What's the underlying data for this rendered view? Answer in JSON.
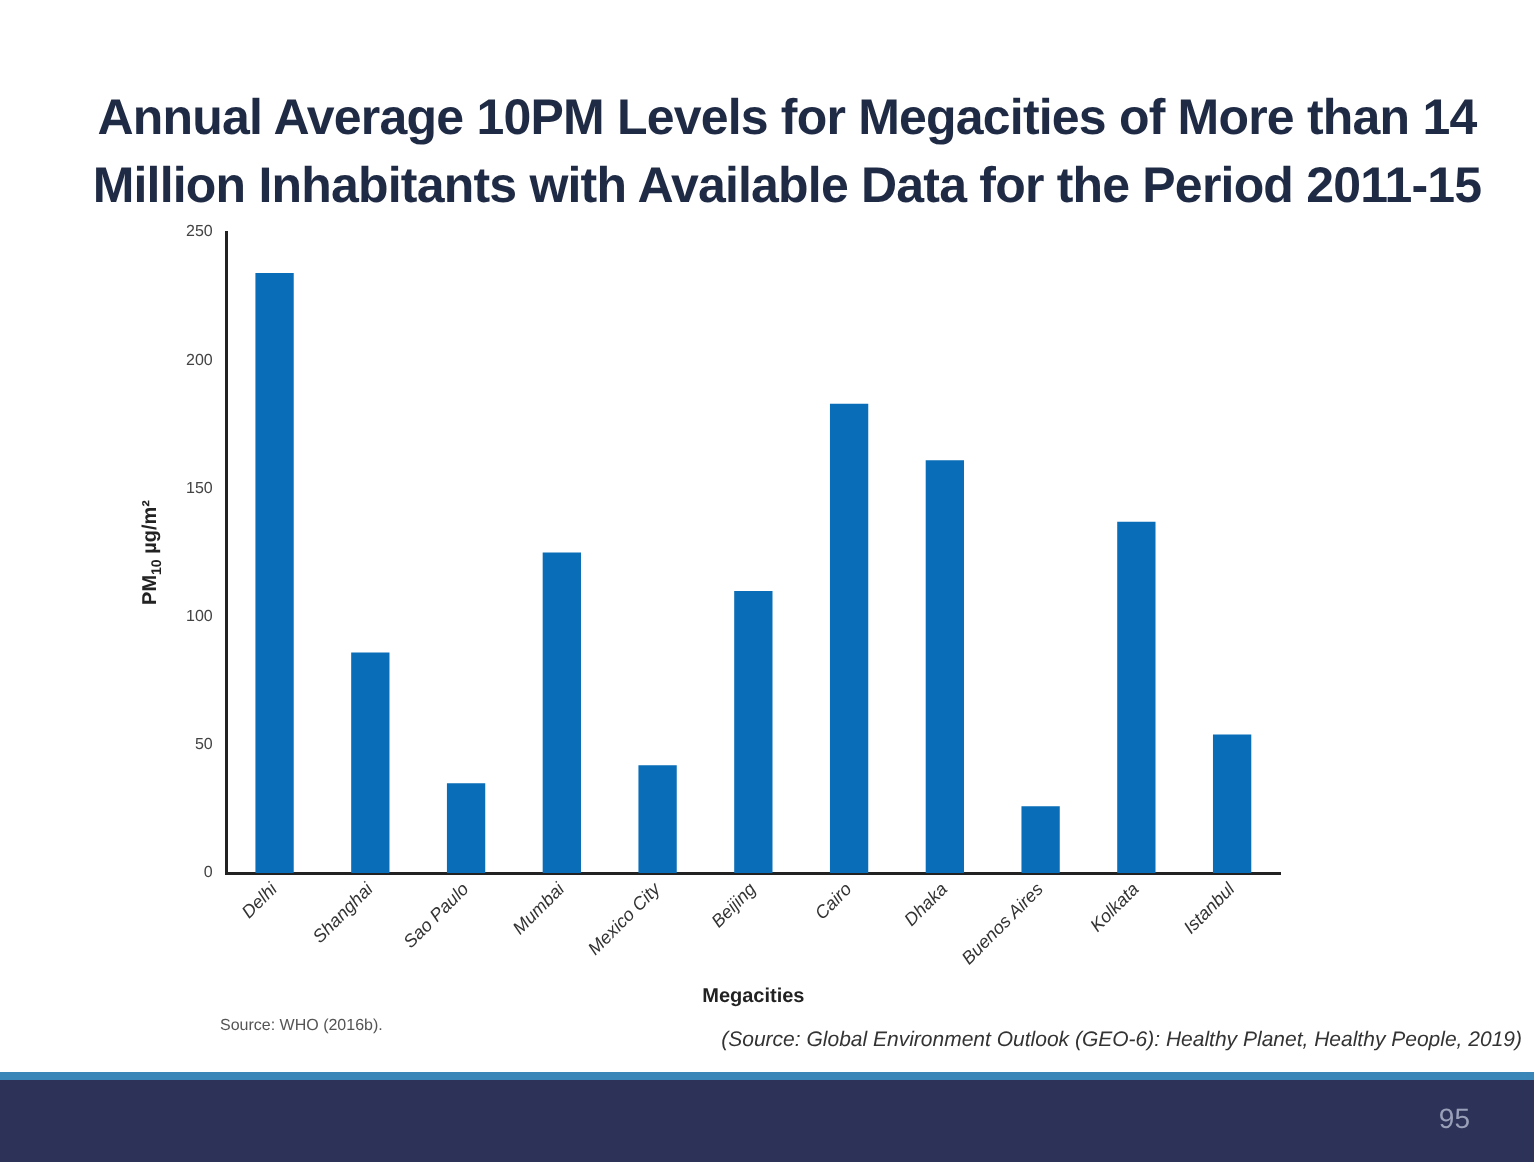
{
  "chart_data": {
    "type": "bar",
    "title": "Annual Average 10PM Levels for Megacities of More than 14 Million Inhabitants with Available Data for the Period 2011-15",
    "categories": [
      "Delhi",
      "Shanghai",
      "Sao Paulo",
      "Mumbai",
      "Mexico City",
      "Beijing",
      "Cairo",
      "Dhaka",
      "Buenos Aires",
      "Kolkata",
      "Istanbul"
    ],
    "values": [
      234,
      86,
      35,
      125,
      42,
      110,
      183,
      161,
      26,
      137,
      54
    ],
    "color": "#0a6db7",
    "xlabel": "Megacities",
    "ylabel": "PM$_{10}$ µg/m²",
    "ylim": [
      0,
      250
    ],
    "yticks": [
      0,
      50,
      100,
      150,
      200,
      250
    ],
    "grid": false,
    "legend": false,
    "annotations": [
      "Source: WHO (2016b).",
      "(Source: Global Environment Outlook (GEO-6): Healthy Planet, Healthy People, 2019)",
      "95"
    ]
  }
}
